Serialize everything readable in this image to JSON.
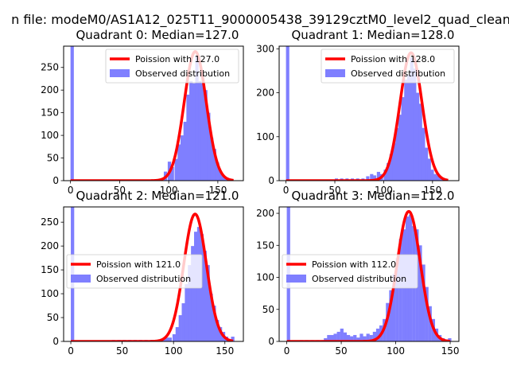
{
  "figure": {
    "suptitle": "n file: modeM0/AS1A12_025T11_9000005438_39129cztM0_level2_quad_clean"
  },
  "chart_data": [
    {
      "type": "bar",
      "title": "Quadrant 0: Median=127.0",
      "xlabel": "",
      "ylabel": "",
      "xlim": [
        -7,
        176
      ],
      "ylim": [
        0,
        297
      ],
      "xticks": [
        0,
        50,
        100,
        150
      ],
      "yticks": [
        0,
        50,
        100,
        150,
        200,
        250
      ],
      "legend_position": "upper right",
      "histogram": {
        "name": "Observed distribution",
        "color": "#7f7fff",
        "bin_width": 3.4,
        "bins": [
          {
            "x": 0,
            "count": 297
          },
          {
            "x": 91,
            "count": 5
          },
          {
            "x": 95,
            "count": 20
          },
          {
            "x": 99,
            "count": 42
          },
          {
            "x": 102,
            "count": 30
          },
          {
            "x": 106,
            "count": 48
          },
          {
            "x": 109,
            "count": 80
          },
          {
            "x": 112,
            "count": 100
          },
          {
            "x": 115,
            "count": 130
          },
          {
            "x": 118,
            "count": 190
          },
          {
            "x": 121,
            "count": 220
          },
          {
            "x": 124,
            "count": 215
          },
          {
            "x": 127,
            "count": 275
          },
          {
            "x": 130,
            "count": 220
          },
          {
            "x": 133,
            "count": 215
          },
          {
            "x": 136,
            "count": 200
          },
          {
            "x": 139,
            "count": 150
          },
          {
            "x": 142,
            "count": 95
          },
          {
            "x": 145,
            "count": 70
          },
          {
            "x": 148,
            "count": 40
          },
          {
            "x": 151,
            "count": 20
          },
          {
            "x": 154,
            "count": 10
          },
          {
            "x": 157,
            "count": 6
          },
          {
            "x": 160,
            "count": 3
          }
        ]
      },
      "small_bins": {
        "x_start": 30,
        "x_end": 90,
        "count": 2
      },
      "poisson": {
        "name": "Poission with 127.0",
        "lambda": 127.0,
        "peak": 285,
        "color": "#ff0000",
        "x_range": [
          0,
          166
        ]
      }
    },
    {
      "type": "bar",
      "title": "Quadrant 1: Median=128.0",
      "xlabel": "",
      "ylabel": "",
      "xlim": [
        -7,
        177
      ],
      "ylim": [
        0,
        306
      ],
      "xticks": [
        0,
        50,
        100,
        150
      ],
      "yticks": [
        0,
        100,
        200,
        300
      ],
      "legend_position": "upper right",
      "histogram": {
        "name": "Observed distribution",
        "color": "#7f7fff",
        "bin_width": 3.4,
        "bins": [
          {
            "x": 0,
            "count": 306
          },
          {
            "x": 82,
            "count": 10
          },
          {
            "x": 86,
            "count": 15
          },
          {
            "x": 89,
            "count": 12
          },
          {
            "x": 93,
            "count": 20
          },
          {
            "x": 96,
            "count": 15
          },
          {
            "x": 100,
            "count": 25
          },
          {
            "x": 103,
            "count": 40
          },
          {
            "x": 106,
            "count": 60
          },
          {
            "x": 109,
            "count": 85
          },
          {
            "x": 112,
            "count": 120
          },
          {
            "x": 115,
            "count": 150
          },
          {
            "x": 118,
            "count": 190
          },
          {
            "x": 121,
            "count": 230
          },
          {
            "x": 124,
            "count": 240
          },
          {
            "x": 127,
            "count": 280
          },
          {
            "x": 130,
            "count": 255
          },
          {
            "x": 133,
            "count": 200
          },
          {
            "x": 136,
            "count": 175
          },
          {
            "x": 139,
            "count": 120
          },
          {
            "x": 142,
            "count": 75
          },
          {
            "x": 145,
            "count": 50
          },
          {
            "x": 148,
            "count": 25
          },
          {
            "x": 151,
            "count": 15
          },
          {
            "x": 154,
            "count": 12
          },
          {
            "x": 157,
            "count": 8
          },
          {
            "x": 160,
            "count": 5
          }
        ]
      },
      "small_bins": {
        "x_start": 50,
        "x_end": 80,
        "count": 5
      },
      "poisson": {
        "name": "Poission with 128.0",
        "lambda": 128.0,
        "peak": 291,
        "color": "#ff0000",
        "x_range": [
          0,
          166
        ]
      }
    },
    {
      "type": "bar",
      "title": "Quadrant 2: Median=121.0",
      "xlabel": "",
      "ylabel": "",
      "xlim": [
        -7,
        168
      ],
      "ylim": [
        0,
        282
      ],
      "xticks": [
        0,
        50,
        100,
        150
      ],
      "yticks": [
        0,
        50,
        100,
        150,
        200,
        250
      ],
      "legend_position": "center left",
      "histogram": {
        "name": "Observed distribution",
        "color": "#7f7fff",
        "bin_width": 3.3,
        "bins": [
          {
            "x": 0,
            "count": 282
          },
          {
            "x": 89,
            "count": 5
          },
          {
            "x": 92,
            "count": 8
          },
          {
            "x": 95,
            "count": 8
          },
          {
            "x": 99,
            "count": 15
          },
          {
            "x": 102,
            "count": 30
          },
          {
            "x": 105,
            "count": 55
          },
          {
            "x": 108,
            "count": 80
          },
          {
            "x": 111,
            "count": 120
          },
          {
            "x": 114,
            "count": 160
          },
          {
            "x": 117,
            "count": 200
          },
          {
            "x": 120,
            "count": 230
          },
          {
            "x": 123,
            "count": 240
          },
          {
            "x": 126,
            "count": 225
          },
          {
            "x": 129,
            "count": 190
          },
          {
            "x": 132,
            "count": 160
          },
          {
            "x": 135,
            "count": 100
          },
          {
            "x": 138,
            "count": 75
          },
          {
            "x": 141,
            "count": 45
          },
          {
            "x": 144,
            "count": 30
          },
          {
            "x": 147,
            "count": 20
          },
          {
            "x": 150,
            "count": 10
          },
          {
            "x": 153,
            "count": 5
          },
          {
            "x": 156,
            "count": 10
          }
        ]
      },
      "small_bins": {
        "x_start": 40,
        "x_end": 88,
        "count": 3
      },
      "poisson": {
        "name": "Poission with 121.0",
        "lambda": 121.0,
        "peak": 267,
        "color": "#ff0000",
        "x_range": [
          0,
          158
        ]
      }
    },
    {
      "type": "bar",
      "title": "Quadrant 3: Median=112.0",
      "xlabel": "",
      "ylabel": "",
      "xlim": [
        -7,
        158
      ],
      "ylim": [
        0,
        210
      ],
      "xticks": [
        0,
        50,
        100,
        150
      ],
      "yticks": [
        0,
        50,
        100,
        150,
        200
      ],
      "legend_position": "center left",
      "histogram": {
        "name": "Observed distribution",
        "color": "#7f7fff",
        "bin_width": 3.1,
        "bins": [
          {
            "x": 0,
            "count": 210
          },
          {
            "x": 34,
            "count": 5
          },
          {
            "x": 37,
            "count": 10
          },
          {
            "x": 40,
            "count": 10
          },
          {
            "x": 43,
            "count": 12
          },
          {
            "x": 46,
            "count": 15
          },
          {
            "x": 49,
            "count": 20
          },
          {
            "x": 52,
            "count": 14
          },
          {
            "x": 55,
            "count": 10
          },
          {
            "x": 58,
            "count": 8
          },
          {
            "x": 61,
            "count": 10
          },
          {
            "x": 64,
            "count": 6
          },
          {
            "x": 67,
            "count": 12
          },
          {
            "x": 70,
            "count": 8
          },
          {
            "x": 73,
            "count": 12
          },
          {
            "x": 76,
            "count": 10
          },
          {
            "x": 79,
            "count": 15
          },
          {
            "x": 82,
            "count": 20
          },
          {
            "x": 85,
            "count": 25
          },
          {
            "x": 88,
            "count": 35
          },
          {
            "x": 91,
            "count": 60
          },
          {
            "x": 94,
            "count": 80
          },
          {
            "x": 97,
            "count": 105
          },
          {
            "x": 100,
            "count": 130
          },
          {
            "x": 103,
            "count": 160
          },
          {
            "x": 106,
            "count": 175
          },
          {
            "x": 109,
            "count": 195
          },
          {
            "x": 112,
            "count": 198
          },
          {
            "x": 115,
            "count": 180
          },
          {
            "x": 118,
            "count": 175
          },
          {
            "x": 121,
            "count": 150
          },
          {
            "x": 124,
            "count": 120
          },
          {
            "x": 127,
            "count": 85
          },
          {
            "x": 130,
            "count": 55
          },
          {
            "x": 133,
            "count": 35
          },
          {
            "x": 136,
            "count": 20
          },
          {
            "x": 139,
            "count": 10
          },
          {
            "x": 142,
            "count": 5
          },
          {
            "x": 145,
            "count": 3
          },
          {
            "x": 148,
            "count": 5
          }
        ]
      },
      "small_bins": {
        "x_start": 12,
        "x_end": 32,
        "count": 2
      },
      "poisson": {
        "name": "Poission with 112.0",
        "lambda": 112.0,
        "peak": 203,
        "color": "#ff0000",
        "x_range": [
          0,
          150
        ]
      }
    }
  ]
}
